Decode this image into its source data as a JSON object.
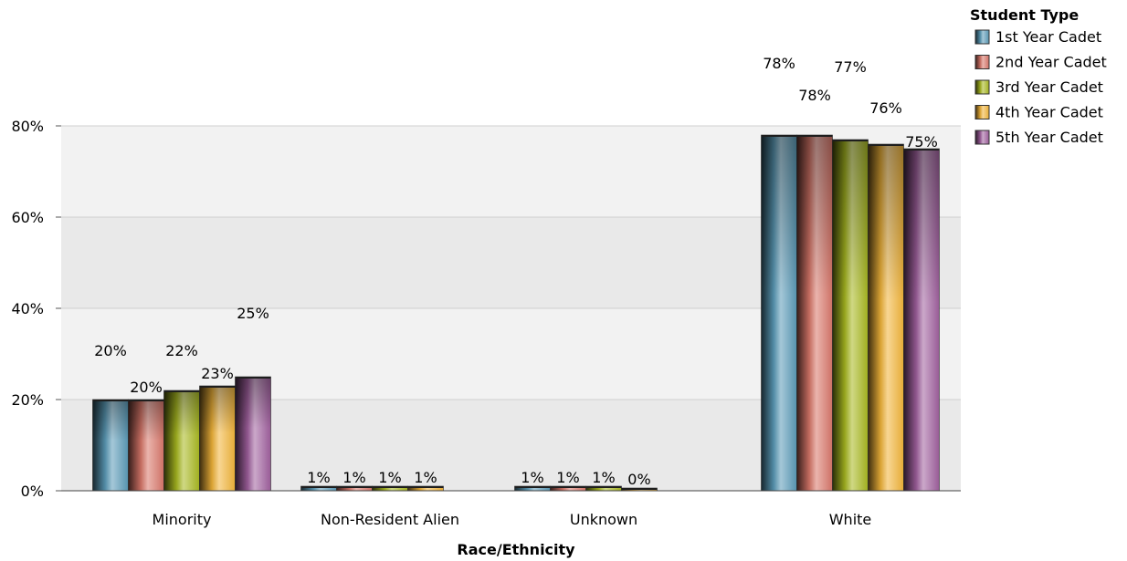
{
  "chart_data": {
    "type": "bar",
    "title": "",
    "xlabel": "Race/Ethnicity",
    "ylabel": "",
    "ylim": [
      0,
      80
    ],
    "yticks": [
      "0%",
      "20%",
      "40%",
      "60%",
      "80%"
    ],
    "ytick_values": [
      0,
      20,
      40,
      60,
      80
    ],
    "grid": true,
    "legend_title": "Student Type",
    "legend_position": "top-right",
    "categories": [
      "Minority",
      "Non-Resident Alien",
      "Unknown",
      "White"
    ],
    "series": [
      {
        "name": "1st Year Cadet",
        "color": "#5b9bb8",
        "values": [
          20,
          1,
          1,
          78
        ],
        "labels": [
          "20%",
          "1%",
          "1%",
          "78%"
        ]
      },
      {
        "name": "2nd Year Cadet",
        "color": "#d9776a",
        "values": [
          20,
          1,
          1,
          78
        ],
        "labels": [
          "20%",
          "1%",
          "1%",
          "78%"
        ]
      },
      {
        "name": "3rd Year Cadet",
        "color": "#a8b820",
        "values": [
          22,
          1,
          1,
          77
        ],
        "labels": [
          "22%",
          "1%",
          "1%",
          "77%"
        ]
      },
      {
        "name": "4th Year Cadet",
        "color": "#f2b53a",
        "values": [
          23,
          1,
          0,
          76
        ],
        "labels": [
          "23%",
          "1%",
          "0%",
          "76%"
        ]
      },
      {
        "name": "5th Year Cadet",
        "color": "#a0609e",
        "values": [
          25,
          null,
          null,
          75
        ],
        "labels": [
          "25%",
          "",
          "",
          "75%"
        ]
      }
    ]
  }
}
